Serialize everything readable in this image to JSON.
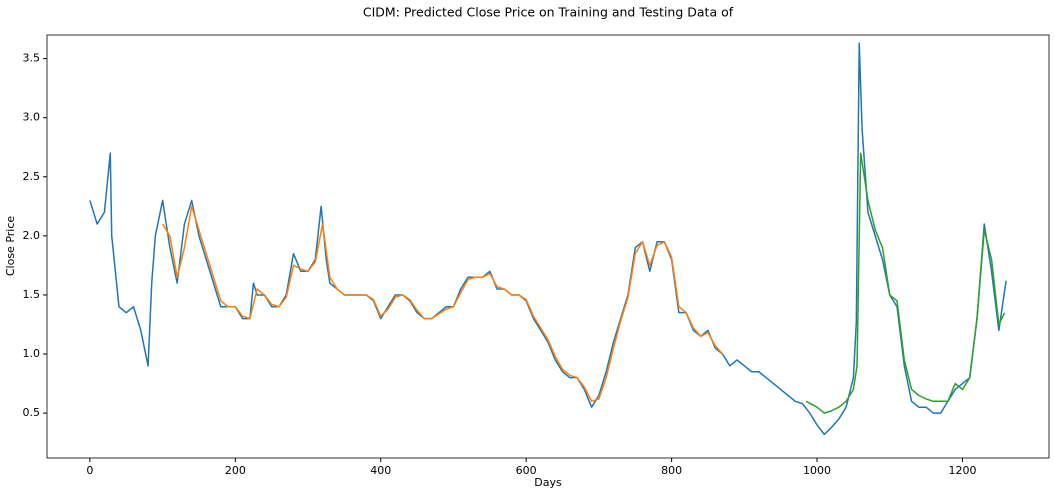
{
  "chart_data": {
    "type": "line",
    "title": "CIDM: Predicted Close Price on Training and Testing Data of",
    "xlabel": "Days",
    "ylabel": "Close Price",
    "xlim": [
      -59,
      1319
    ],
    "ylim": [
      0.12,
      3.7
    ],
    "xticks": [
      0,
      200,
      400,
      600,
      800,
      1000,
      1200
    ],
    "yticks": [
      0.5,
      {
        "value": 1,
        "label": "1.0"
      },
      1.5,
      {
        "value": 2,
        "label": "2.0"
      },
      2.5,
      {
        "value": 3,
        "label": "3.0"
      },
      3.5
    ],
    "grid": false,
    "series": [
      {
        "color": "#1f77b4",
        "x": [
          0,
          10,
          20,
          28,
          30,
          40,
          50,
          60,
          70,
          80,
          85,
          90,
          100,
          110,
          120,
          130,
          140,
          150,
          160,
          170,
          180,
          190,
          200,
          210,
          220,
          225,
          230,
          240,
          250,
          260,
          270,
          280,
          290,
          300,
          310,
          318,
          325,
          330,
          340,
          350,
          360,
          370,
          380,
          390,
          400,
          410,
          420,
          430,
          440,
          450,
          460,
          470,
          480,
          490,
          500,
          510,
          520,
          530,
          540,
          550,
          560,
          570,
          580,
          590,
          600,
          610,
          620,
          630,
          640,
          650,
          660,
          670,
          680,
          690,
          700,
          710,
          720,
          730,
          740,
          750,
          760,
          770,
          780,
          790,
          800,
          810,
          820,
          830,
          840,
          850,
          860,
          870,
          880,
          890,
          900,
          910,
          920,
          930,
          940,
          950,
          960,
          970,
          980,
          990,
          1000,
          1010,
          1020,
          1030,
          1040,
          1050,
          1054,
          1058,
          1062,
          1070,
          1080,
          1090,
          1100,
          1110,
          1120,
          1130,
          1140,
          1150,
          1160,
          1170,
          1180,
          1190,
          1200,
          1210,
          1220,
          1230,
          1240,
          1250,
          1260
        ],
        "values": [
          2.3,
          2.1,
          2.2,
          2.7,
          2.0,
          1.4,
          1.35,
          1.4,
          1.2,
          0.9,
          1.6,
          2.0,
          2.3,
          1.9,
          1.6,
          2.1,
          2.3,
          2.0,
          1.8,
          1.6,
          1.4,
          1.4,
          1.4,
          1.3,
          1.3,
          1.6,
          1.5,
          1.5,
          1.4,
          1.4,
          1.5,
          1.85,
          1.7,
          1.7,
          1.8,
          2.25,
          1.8,
          1.6,
          1.55,
          1.5,
          1.5,
          1.5,
          1.5,
          1.45,
          1.3,
          1.4,
          1.5,
          1.5,
          1.45,
          1.35,
          1.3,
          1.3,
          1.35,
          1.4,
          1.4,
          1.55,
          1.65,
          1.65,
          1.65,
          1.7,
          1.55,
          1.55,
          1.5,
          1.5,
          1.45,
          1.3,
          1.2,
          1.1,
          0.95,
          0.85,
          0.8,
          0.8,
          0.7,
          0.55,
          0.65,
          0.85,
          1.1,
          1.3,
          1.5,
          1.9,
          1.95,
          1.7,
          1.95,
          1.95,
          1.8,
          1.35,
          1.35,
          1.2,
          1.15,
          1.2,
          1.05,
          1.0,
          0.9,
          0.95,
          0.9,
          0.85,
          0.85,
          0.8,
          0.75,
          0.7,
          0.65,
          0.6,
          0.58,
          0.5,
          0.4,
          0.32,
          0.38,
          0.45,
          0.55,
          0.8,
          1.27,
          3.63,
          2.9,
          2.2,
          2.0,
          1.8,
          1.5,
          1.4,
          0.9,
          0.6,
          0.55,
          0.55,
          0.5,
          0.5,
          0.6,
          0.7,
          0.75,
          0.8,
          1.3,
          2.1,
          1.7,
          1.2,
          1.62
        ]
      },
      {
        "color": "#ff7f0e",
        "x": [
          100,
          110,
          120,
          130,
          140,
          150,
          160,
          170,
          180,
          190,
          200,
          210,
          220,
          230,
          240,
          250,
          260,
          270,
          280,
          290,
          300,
          310,
          320,
          330,
          340,
          350,
          360,
          370,
          380,
          390,
          400,
          410,
          420,
          430,
          440,
          450,
          460,
          470,
          480,
          490,
          500,
          510,
          520,
          530,
          540,
          550,
          560,
          570,
          580,
          590,
          600,
          610,
          620,
          630,
          640,
          650,
          660,
          670,
          680,
          690,
          700,
          710,
          720,
          730,
          740,
          750,
          760,
          770,
          780,
          790,
          800,
          810,
          820,
          830,
          840,
          850,
          860,
          870
        ],
        "values": [
          2.1,
          2.0,
          1.65,
          1.9,
          2.25,
          2.05,
          1.85,
          1.65,
          1.45,
          1.4,
          1.4,
          1.32,
          1.3,
          1.55,
          1.5,
          1.42,
          1.4,
          1.48,
          1.75,
          1.72,
          1.7,
          1.78,
          2.1,
          1.65,
          1.55,
          1.5,
          1.5,
          1.5,
          1.5,
          1.46,
          1.32,
          1.38,
          1.48,
          1.5,
          1.46,
          1.37,
          1.3,
          1.3,
          1.34,
          1.38,
          1.4,
          1.52,
          1.63,
          1.65,
          1.65,
          1.68,
          1.57,
          1.55,
          1.5,
          1.5,
          1.46,
          1.32,
          1.22,
          1.12,
          0.98,
          0.87,
          0.82,
          0.8,
          0.72,
          0.6,
          0.62,
          0.8,
          1.05,
          1.28,
          1.48,
          1.85,
          1.95,
          1.75,
          1.92,
          1.95,
          1.82,
          1.4,
          1.35,
          1.22,
          1.15,
          1.18,
          1.07,
          1.0
        ]
      },
      {
        "color": "#2ca02c",
        "x": [
          985,
          1000,
          1010,
          1020,
          1030,
          1040,
          1050,
          1055,
          1060,
          1070,
          1080,
          1090,
          1100,
          1110,
          1120,
          1130,
          1140,
          1150,
          1160,
          1170,
          1180,
          1190,
          1200,
          1210,
          1220,
          1230,
          1240,
          1250,
          1258
        ],
        "values": [
          0.6,
          0.55,
          0.5,
          0.52,
          0.55,
          0.6,
          0.7,
          0.9,
          2.7,
          2.3,
          2.05,
          1.9,
          1.5,
          1.45,
          0.95,
          0.7,
          0.65,
          0.62,
          0.6,
          0.6,
          0.6,
          0.75,
          0.7,
          0.8,
          1.3,
          2.05,
          1.8,
          1.25,
          1.35
        ]
      }
    ]
  }
}
